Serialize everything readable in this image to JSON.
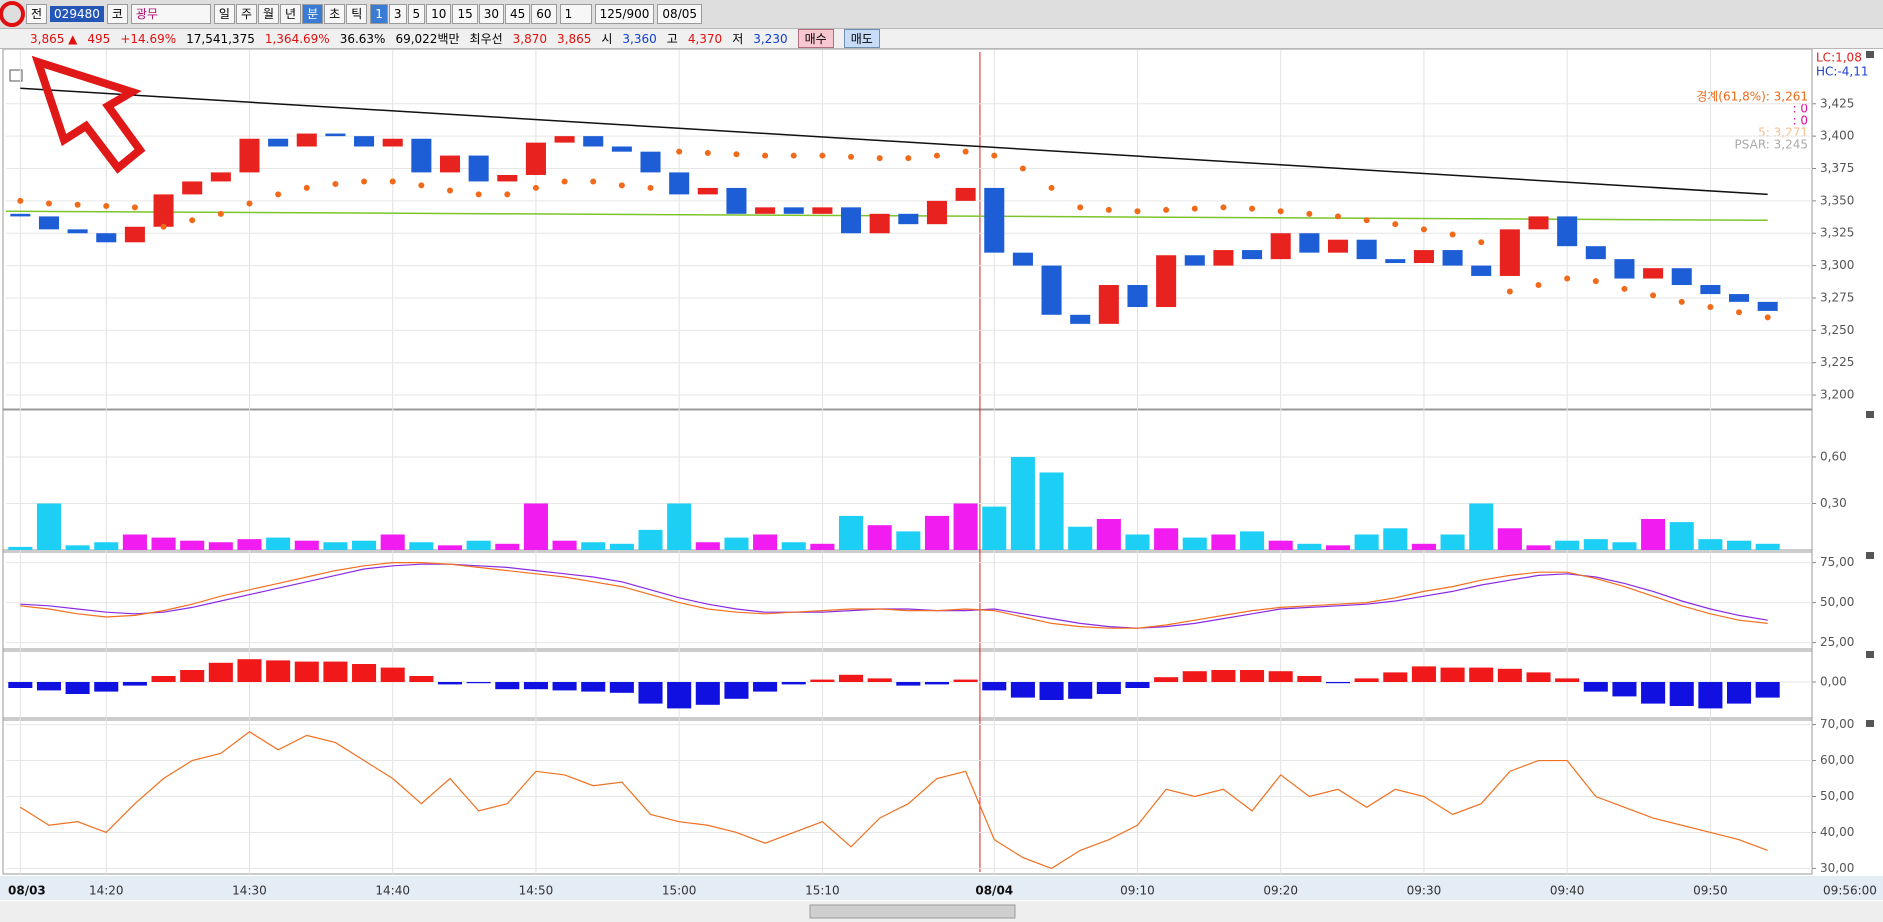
{
  "toolbar": {
    "prev": "전",
    "code": "029480",
    "market": "코",
    "name": "광무",
    "periods": [
      "일",
      "주",
      "월",
      "년",
      "분",
      "초",
      "틱"
    ],
    "intervals": [
      "1",
      "3",
      "5",
      "10",
      "15",
      "30",
      "45",
      "60"
    ],
    "count_unit": "1",
    "count": "125/900",
    "date": "08/05"
  },
  "info": {
    "price": "3,865 ▲",
    "change": "495",
    "rate": "+14.69%",
    "volume": "17,541,375",
    "vol_rate": "1,364.69%",
    "turnover": "36.63%",
    "amount": "69,022백만",
    "best": "최우선",
    "ask": "3,870",
    "bid": "3,865",
    "open_label": "시",
    "open": "3,360",
    "high_label": "고",
    "high": "4,370",
    "low_label": "저",
    "low": "3,230",
    "buy": "매수",
    "sell": "매도"
  },
  "overlay": {
    "lc": "LC:1,08",
    "hc": "HC:-4,11",
    "fib": "경계(61,8%): 3,261",
    "a": ": 0",
    "b": ": 0",
    "ma": "5: 3,271",
    "psar": "PSAR: 3,245"
  },
  "time_end": "09:56:00",
  "chart_data": [
    {
      "type": "candlestick",
      "up_color": "#e8231f",
      "down_color": "#1d5ed6",
      "psar_color": "#f06a1a",
      "trend_color": "#111111",
      "base_color": "#7cc42a",
      "categories": [
        "08/03",
        null,
        null,
        "14:20",
        null,
        null,
        null,
        null,
        "14:30",
        null,
        null,
        null,
        null,
        "14:40",
        null,
        null,
        null,
        null,
        "14:50",
        null,
        null,
        null,
        null,
        "15:00",
        null,
        null,
        null,
        null,
        "15:10",
        null,
        null,
        null,
        null,
        null,
        "08/04",
        null,
        null,
        null,
        null,
        "09:10",
        null,
        null,
        null,
        null,
        "09:20",
        null,
        null,
        null,
        null,
        "09:30",
        null,
        null,
        null,
        null,
        "09:40",
        null,
        null,
        null,
        null,
        "09:50",
        null,
        null
      ],
      "open": 3340,
      "close": [
        3338,
        3328,
        3325,
        3318,
        3330,
        3355,
        3365,
        3372,
        3398,
        3392,
        3402,
        3400,
        3392,
        3398,
        3372,
        3385,
        3365,
        3370,
        3395,
        3400,
        3392,
        3388,
        3372,
        3355,
        3360,
        3340,
        3345,
        3340,
        3345,
        3325,
        3340,
        3332,
        3350,
        3360,
        3310,
        3300,
        3262,
        3255,
        3285,
        3268,
        3308,
        3300,
        3312,
        3305,
        3325,
        3310,
        3320,
        3305,
        3302,
        3312,
        3300,
        3292,
        3328,
        3338,
        3315,
        3305,
        3290,
        3298,
        3285,
        3278,
        3272,
        3265
      ],
      "psar": [
        3350,
        3348,
        3347,
        3346,
        3345,
        3330,
        3335,
        3340,
        3348,
        3355,
        3360,
        3363,
        3365,
        3365,
        3362,
        3358,
        3355,
        3355,
        3360,
        3365,
        3365,
        3362,
        3360,
        3388,
        3387,
        3386,
        3385,
        3385,
        3385,
        3384,
        3383,
        3383,
        3385,
        3388,
        3385,
        3375,
        3360,
        3345,
        3343,
        3342,
        3343,
        3344,
        3345,
        3344,
        3342,
        3340,
        3338,
        3335,
        3332,
        3328,
        3324,
        3318,
        3280,
        3285,
        3290,
        3288,
        3282,
        3277,
        3272,
        3268,
        3264,
        3260
      ],
      "trend": [
        3437,
        3355
      ],
      "baseline": [
        3342,
        3335
      ],
      "ylim": [
        3190,
        3465
      ],
      "yticks": [
        {
          "value": 3200,
          "label": "3,200"
        },
        {
          "value": 3225,
          "label": "3,225"
        },
        {
          "value": 3250,
          "label": "3,250"
        },
        {
          "value": 3275,
          "label": "3,275"
        },
        {
          "value": 3300,
          "label": "3,300"
        },
        {
          "value": 3325,
          "label": "3,325"
        },
        {
          "value": 3350,
          "label": "3,350"
        },
        {
          "value": 3375,
          "label": "3,375"
        },
        {
          "value": 3400,
          "label": "3,400"
        },
        {
          "value": 3425,
          "label": "3,425"
        }
      ]
    },
    {
      "type": "bar",
      "up_color": "#f01cf0",
      "down_color": "#1ecff5",
      "values": [
        0.02,
        0.3,
        0.03,
        0.05,
        0.1,
        0.08,
        0.06,
        0.05,
        0.07,
        0.08,
        0.06,
        0.05,
        0.06,
        0.1,
        0.05,
        0.03,
        0.06,
        0.04,
        0.3,
        0.06,
        0.05,
        0.04,
        0.13,
        0.3,
        0.05,
        0.08,
        0.1,
        0.05,
        0.04,
        0.22,
        0.16,
        0.12,
        0.22,
        0.3,
        0.28,
        0.6,
        0.5,
        0.15,
        0.2,
        0.1,
        0.14,
        0.08,
        0.1,
        0.12,
        0.06,
        0.04,
        0.03,
        0.1,
        0.14,
        0.04,
        0.1,
        0.3,
        0.14,
        0.03,
        0.06,
        0.07,
        0.05,
        0.2,
        0.18,
        0.07,
        0.06,
        0.04
      ],
      "ylim": [
        0,
        0.89
      ],
      "yticks": [
        {
          "value": 0.3,
          "label": "0,30"
        },
        {
          "value": 0.6,
          "label": "0,60"
        }
      ]
    },
    {
      "type": "line",
      "series": [
        {
          "color": "#8a2be2",
          "values": [
            49,
            48,
            46,
            44,
            43,
            44,
            47,
            51,
            55,
            59,
            63,
            67,
            71,
            73,
            74,
            74,
            73,
            72,
            70,
            68,
            66,
            63,
            58,
            53,
            49,
            46,
            44,
            44,
            44,
            45,
            46,
            46,
            45,
            45,
            46,
            43,
            40,
            37,
            35,
            34,
            35,
            37,
            40,
            43,
            46,
            47,
            48,
            49,
            51,
            54,
            57,
            61,
            64,
            67,
            68,
            66,
            62,
            57,
            51,
            46,
            42,
            39
          ]
        },
        {
          "color": "#f07020",
          "values": [
            48,
            46,
            43,
            41,
            42,
            45,
            49,
            54,
            58,
            62,
            66,
            70,
            73,
            75,
            75,
            74,
            72,
            70,
            68,
            66,
            63,
            60,
            55,
            50,
            46,
            44,
            43,
            44,
            45,
            46,
            46,
            45,
            45,
            46,
            45,
            41,
            37,
            35,
            34,
            34,
            36,
            39,
            42,
            45,
            47,
            48,
            49,
            50,
            53,
            57,
            60,
            64,
            67,
            69,
            69,
            65,
            60,
            54,
            48,
            43,
            39,
            37
          ]
        }
      ],
      "ylim": [
        21,
        81
      ],
      "yticks": [
        {
          "value": 25,
          "label": "25,00"
        },
        {
          "value": 50,
          "label": "50,00"
        },
        {
          "value": 75,
          "label": "75,00"
        }
      ]
    },
    {
      "type": "bar",
      "up_color": "#f01818",
      "down_color": "#1010e0",
      "values": [
        -5,
        -7,
        -10,
        -8,
        -3,
        5,
        10,
        16,
        19,
        18,
        17,
        17,
        15,
        12,
        5,
        -2,
        -1,
        -6,
        -6,
        -7,
        -8,
        -9,
        -18,
        -22,
        -19,
        -14,
        -8,
        -2,
        2,
        6,
        3,
        -3,
        -2,
        2,
        -7,
        -13,
        -15,
        -14,
        -10,
        -5,
        4,
        9,
        10,
        10,
        9,
        5,
        -1,
        3,
        8,
        13,
        12,
        12,
        11,
        8,
        3,
        -8,
        -12,
        -18,
        -20,
        -22,
        -18,
        -13
      ],
      "ylim": [
        -30,
        25
      ],
      "yticks": [
        {
          "value": 0,
          "label": "0,00"
        }
      ]
    },
    {
      "type": "line",
      "series": [
        {
          "color": "#f07020",
          "values": [
            47,
            42,
            43,
            40,
            48,
            55,
            60,
            62,
            68,
            63,
            67,
            65,
            60,
            55,
            48,
            55,
            46,
            48,
            57,
            56,
            53,
            54,
            45,
            43,
            42,
            40,
            37,
            40,
            43,
            36,
            44,
            48,
            55,
            57,
            38,
            33,
            30,
            35,
            38,
            42,
            52,
            50,
            52,
            46,
            56,
            50,
            52,
            47,
            52,
            50,
            45,
            48,
            57,
            60,
            60,
            50,
            47,
            44,
            42,
            40,
            38,
            35
          ]
        }
      ],
      "ylim": [
        29,
        71
      ],
      "yticks": [
        {
          "value": 30,
          "label": "30,00"
        },
        {
          "value": 40,
          "label": "40,00"
        },
        {
          "value": 50,
          "label": "50,00"
        },
        {
          "value": 60,
          "label": "60,00"
        },
        {
          "value": 70,
          "label": "70,00"
        }
      ]
    }
  ]
}
